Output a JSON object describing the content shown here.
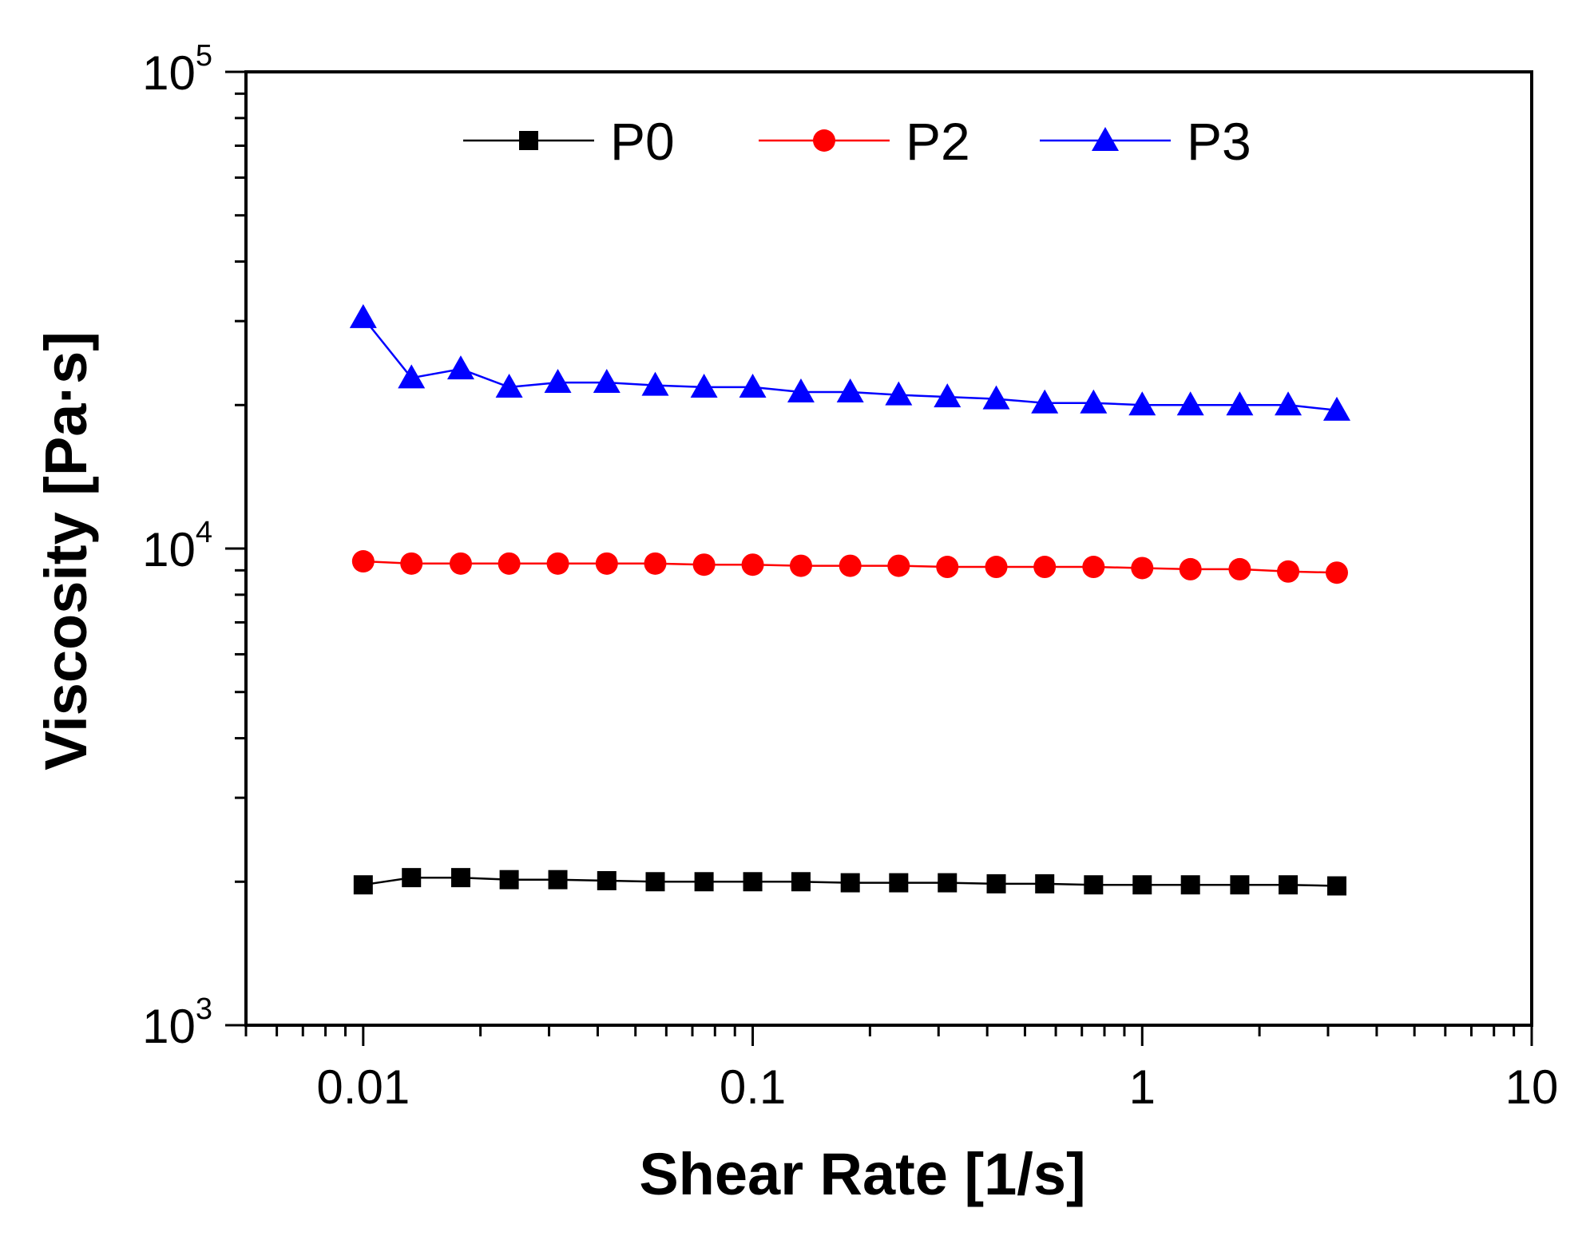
{
  "chart_data": {
    "type": "line",
    "xscale": "log",
    "yscale": "log",
    "xlim": [
      0.005,
      10
    ],
    "ylim": [
      1000,
      100000
    ],
    "xlabel": "Shear Rate [1/s]",
    "ylabel": "Viscosity [Pa·s]",
    "x_ticks": [
      {
        "value": 0.01,
        "label": "0.01"
      },
      {
        "value": 0.1,
        "label": "0.1"
      },
      {
        "value": 1,
        "label": "1"
      },
      {
        "value": 10,
        "label": "10"
      }
    ],
    "y_ticks": [
      {
        "value": 1000,
        "base": "10",
        "exp": "3"
      },
      {
        "value": 10000,
        "base": "10",
        "exp": "4"
      },
      {
        "value": 100000,
        "base": "10",
        "exp": "5"
      }
    ],
    "x": [
      0.01,
      0.0133,
      0.0178,
      0.0237,
      0.0316,
      0.0422,
      0.0562,
      0.075,
      0.1,
      0.133,
      0.178,
      0.237,
      0.316,
      0.422,
      0.562,
      0.75,
      1.0,
      1.33,
      1.78,
      2.37,
      3.16
    ],
    "series": [
      {
        "name": "P0",
        "color": "#000000",
        "marker": "square",
        "values": [
          1970,
          2040,
          2040,
          2020,
          2020,
          2010,
          2000,
          2000,
          2000,
          2000,
          1990,
          1990,
          1990,
          1980,
          1980,
          1970,
          1970,
          1970,
          1970,
          1970,
          1960
        ]
      },
      {
        "name": "P2",
        "color": "#ff0000",
        "marker": "circle",
        "values": [
          9400,
          9300,
          9300,
          9300,
          9300,
          9300,
          9300,
          9250,
          9250,
          9200,
          9200,
          9200,
          9150,
          9150,
          9150,
          9150,
          9100,
          9050,
          9050,
          8950,
          8900
        ]
      },
      {
        "name": "P3",
        "color": "#0000ff",
        "marker": "triangle",
        "values": [
          30500,
          22800,
          23800,
          21800,
          22300,
          22300,
          22000,
          21800,
          21800,
          21300,
          21300,
          21000,
          20800,
          20600,
          20200,
          20200,
          20000,
          20000,
          20000,
          20000,
          19500
        ]
      }
    ],
    "legend": {
      "position": "top",
      "orientation": "horizontal"
    }
  }
}
